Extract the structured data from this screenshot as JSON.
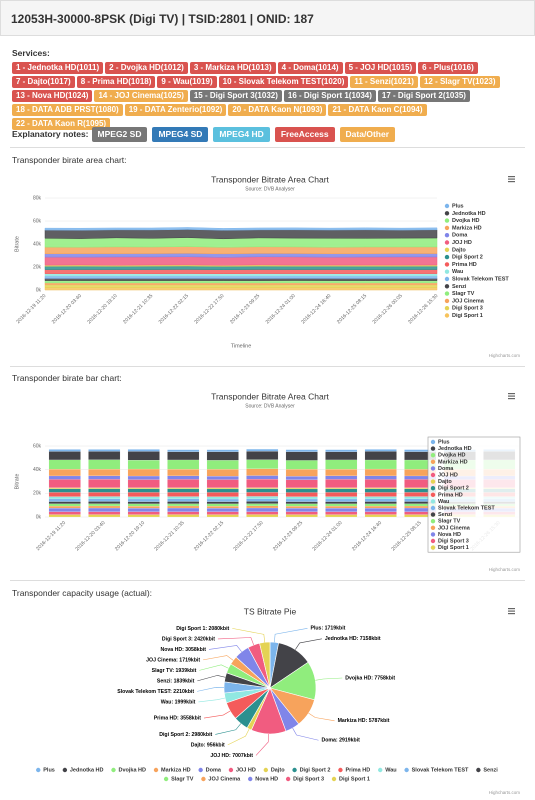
{
  "header": {
    "title": "12053H-30000-8PSK (Digi TV) | TSID:2801 | ONID: 187"
  },
  "services": {
    "label": "Services:",
    "items": [
      {
        "label": "1 - Jednotka HD(1011)",
        "color": "#d9534f"
      },
      {
        "label": "2 - Dvojka HD(1012)",
        "color": "#d9534f"
      },
      {
        "label": "3 - Markiza HD(1013)",
        "color": "#d9534f"
      },
      {
        "label": "4 - Doma(1014)",
        "color": "#d9534f"
      },
      {
        "label": "5 - JOJ HD(1015)",
        "color": "#d9534f"
      },
      {
        "label": "6 - Plus(1016)",
        "color": "#d9534f"
      },
      {
        "label": "7 - Dajto(1017)",
        "color": "#d9534f"
      },
      {
        "label": "8 - Prima HD(1018)",
        "color": "#d9534f"
      },
      {
        "label": "9 - Wau(1019)",
        "color": "#d9534f"
      },
      {
        "label": "10 - Slovak Telekom TEST(1020)",
        "color": "#d9534f"
      },
      {
        "label": "11 - Senzi(1021)",
        "color": "#f0ad4e"
      },
      {
        "label": "12 - Slagr TV(1023)",
        "color": "#f0ad4e"
      },
      {
        "label": "13 - Nova HD(1024)",
        "color": "#d9534f"
      },
      {
        "label": "14 - JOJ Cinema(1025)",
        "color": "#f0ad4e"
      },
      {
        "label": "15 - Digi Sport 3(1032)",
        "color": "#777777"
      },
      {
        "label": "16 - Digi Sport 1(1034)",
        "color": "#777777"
      },
      {
        "label": "17 - Digi Sport 2(1035)",
        "color": "#777777"
      },
      {
        "label": "18 - DATA ADB PRST(1080)",
        "color": "#f0ad4e"
      },
      {
        "label": "19 - DATA Zenterio(1092)",
        "color": "#f0ad4e"
      },
      {
        "label": "20 - DATA Kaon N(1093)",
        "color": "#f0ad4e"
      },
      {
        "label": "21 - DATA Kaon C(1094)",
        "color": "#f0ad4e"
      },
      {
        "label": "22 - DATA Kaon R(1095)",
        "color": "#f0ad4e"
      }
    ]
  },
  "notes": {
    "label": "Explanatory notes:",
    "items": [
      {
        "label": "MPEG2 SD",
        "color": "#777777"
      },
      {
        "label": "MPEG4 SD",
        "color": "#337ab7"
      },
      {
        "label": "MPEG4 HD",
        "color": "#5bc0de"
      },
      {
        "label": "FreeAccess",
        "color": "#d9534f"
      },
      {
        "label": "Data/Other",
        "color": "#f0ad4e"
      }
    ]
  },
  "sections": [
    "Transponder birate area chart:",
    "Transponder birate bar chart:",
    "Transponder capacity usage (actual):"
  ],
  "chart_data": [
    {
      "type": "area",
      "title": "Transponder Bitrate Area Chart",
      "subtitle": "Source: DVB Analyser",
      "y_label": "Bitrate",
      "x_label": "Timeline",
      "credits": "Highcharts.com",
      "grid": true,
      "stacked": true,
      "ylim": [
        0,
        80000
      ],
      "yticks": [
        {
          "value": 0,
          "label": "0k"
        },
        {
          "value": 20000,
          "label": "20k"
        },
        {
          "value": 40000,
          "label": "40k"
        },
        {
          "value": 60000,
          "label": "60k"
        },
        {
          "value": 80000,
          "label": "80k"
        }
      ],
      "categories": [
        "2016-12-19 11:20",
        "2016-12-20 03:40",
        "2016-12-20 19:10",
        "2016-12-21 10:35",
        "2016-12-22 02:15",
        "2016-12-22 17:50",
        "2016-12-23 09:25",
        "2016-12-24 01:00",
        "2016-12-24 16:40",
        "2016-12-25 08:15",
        "2016-12-26 00:05",
        "2016-12-26 15:30"
      ],
      "series": [
        {
          "name": "Plus",
          "color": "#7cb5ec",
          "values": [
            1700,
            1750,
            1680,
            1720,
            1790,
            1650,
            1710,
            1740,
            1690,
            1760,
            1700,
            1720
          ]
        },
        {
          "name": "Jednotka HD",
          "color": "#434348",
          "values": [
            7100,
            7300,
            6900,
            7250,
            7050,
            7400,
            6950,
            7200,
            7100,
            7350,
            7000,
            7150
          ]
        },
        {
          "name": "Dvojka HD",
          "color": "#90ed7d",
          "values": [
            7700,
            7500,
            7900,
            7600,
            7800,
            7450,
            7750,
            7650,
            7900,
            7550,
            7700,
            7750
          ]
        },
        {
          "name": "Markiza HD",
          "color": "#f7a35c",
          "values": [
            5800,
            5600,
            5900,
            5700,
            5950,
            5650,
            5800,
            5750,
            5600,
            5850,
            5700,
            5790
          ]
        },
        {
          "name": "Doma",
          "color": "#8085e9",
          "values": [
            2900,
            3000,
            2850,
            2950,
            2900,
            3050,
            2880,
            2920,
            2990,
            2870,
            2950,
            2920
          ]
        },
        {
          "name": "JOJ HD",
          "color": "#f15c80",
          "values": [
            7000,
            6800,
            7200,
            6950,
            7100,
            6900,
            7050,
            7150,
            6850,
            7000,
            7100,
            7010
          ]
        },
        {
          "name": "Dajto",
          "color": "#e4d354",
          "values": [
            950,
            1000,
            920,
            980,
            960,
            940,
            1010,
            930,
            970,
            990,
            950,
            960
          ]
        },
        {
          "name": "Digi Sport 2",
          "color": "#2b908f",
          "values": [
            2950,
            3000,
            2900,
            3050,
            2980,
            2920,
            3010,
            2970,
            2940,
            3020,
            2960,
            2980
          ]
        },
        {
          "name": "Prima HD",
          "color": "#f45b5b",
          "values": [
            3500,
            3600,
            3450,
            3550,
            3620,
            3480,
            3560,
            3510,
            3590,
            3470,
            3540,
            3560
          ]
        },
        {
          "name": "Wau",
          "color": "#91e8e1",
          "values": [
            2000,
            1950,
            2050,
            1980,
            2010,
            1970,
            2030,
            1990,
            1960,
            2020,
            2000,
            2000
          ]
        },
        {
          "name": "Slovak Telekom TEST",
          "color": "#7cb5ec",
          "values": [
            2200,
            2250,
            2180,
            2210,
            2230,
            2190,
            2240,
            2200,
            2220,
            2210,
            2190,
            2210
          ]
        },
        {
          "name": "Senzi",
          "color": "#434348",
          "values": [
            1850,
            1800,
            1870,
            1830,
            1840,
            1820,
            1860,
            1810,
            1850,
            1840,
            1830,
            1840
          ]
        },
        {
          "name": "Slagr TV",
          "color": "#90ed7d",
          "values": [
            1950,
            1920,
            1960,
            1930,
            1940,
            1950,
            1920,
            1960,
            1930,
            1940,
            1950,
            1940
          ]
        },
        {
          "name": "JOJ Cinema",
          "color": "#f7a35c",
          "values": [
            1700,
            1750,
            1690,
            1720,
            1730,
            1700,
            1740,
            1710,
            1720,
            1690,
            1730,
            1720
          ]
        },
        {
          "name": "Digi Sport 3",
          "color": "#e4d354",
          "values": [
            2400,
            2450,
            2380,
            2420,
            2430,
            2410,
            2390,
            2440,
            2420,
            2400,
            2430,
            2420
          ]
        },
        {
          "name": "Digi Sport 1",
          "color": "#f7c35c",
          "values": [
            2100,
            2050,
            2120,
            2080,
            2070,
            2090,
            2060,
            2110,
            2080,
            2090,
            2070,
            2080
          ]
        }
      ]
    },
    {
      "type": "bar",
      "title": "Transponder Bitrate Area Chart",
      "subtitle": "Source: DVB Analyser",
      "y_label": "Bitrate",
      "credits": "Highcharts.com",
      "grid": true,
      "stacked": true,
      "ylim": [
        0,
        60000
      ],
      "yticks": [
        {
          "value": 0,
          "label": "0k"
        },
        {
          "value": 20000,
          "label": "20k"
        },
        {
          "value": 40000,
          "label": "40k"
        },
        {
          "value": 60000,
          "label": "60k"
        }
      ],
      "categories": [
        "2016-12-19 11:20",
        "2016-12-20 03:40",
        "2016-12-20 19:10",
        "2016-12-21 10:35",
        "2016-12-22 02:15",
        "2016-12-22 17:50",
        "2016-12-23 09:25",
        "2016-12-24 01:00",
        "2016-12-24 16:40",
        "2016-12-25 08:15",
        "2016-12-26 00:05",
        "2016-12-26 15:30"
      ],
      "series": [
        {
          "name": "Plus",
          "color": "#7cb5ec",
          "values": [
            1720,
            1690,
            1750,
            1700,
            1680,
            1760,
            1710,
            1730,
            1700,
            1740,
            1690,
            1720
          ]
        },
        {
          "name": "Jednotka HD",
          "color": "#434348",
          "values": [
            7150,
            7000,
            7300,
            6950,
            7200,
            7100,
            7350,
            6900,
            7250,
            7050,
            7150,
            7160
          ]
        },
        {
          "name": "Dvojka HD",
          "color": "#90ed7d",
          "values": [
            7750,
            7900,
            7550,
            7800,
            7600,
            7700,
            7450,
            7850,
            7650,
            7800,
            7700,
            7760
          ]
        },
        {
          "name": "Markiza HD",
          "color": "#f7a35c",
          "values": [
            5790,
            5700,
            5900,
            5650,
            5850,
            5750,
            5950,
            5600,
            5800,
            5700,
            5850,
            5790
          ]
        },
        {
          "name": "Doma",
          "color": "#8085e9",
          "values": [
            2920,
            2880,
            2990,
            2950,
            2870,
            3000,
            2910,
            2940,
            2960,
            2890,
            2930,
            2920
          ]
        },
        {
          "name": "JOJ HD",
          "color": "#f15c80",
          "values": [
            7010,
            7150,
            6900,
            7050,
            6950,
            7200,
            6850,
            7100,
            7000,
            7050,
            6950,
            7010
          ]
        },
        {
          "name": "Dajto",
          "color": "#e4d354",
          "values": [
            960,
            940,
            990,
            950,
            1000,
            930,
            970,
            960,
            980,
            940,
            950,
            960
          ]
        },
        {
          "name": "Digi Sport 2",
          "color": "#2b908f",
          "values": [
            2980,
            3010,
            2950,
            2990,
            2930,
            3040,
            2970,
            2960,
            3000,
            2950,
            2990,
            2980
          ]
        },
        {
          "name": "Prima HD",
          "color": "#f45b5b",
          "values": [
            3560,
            3490,
            3610,
            3520,
            3580,
            3470,
            3550,
            3600,
            3500,
            3540,
            3570,
            3560
          ]
        },
        {
          "name": "Wau",
          "color": "#91e8e1",
          "values": [
            2000,
            2020,
            1970,
            2010,
            1990,
            2040,
            1960,
            2000,
            2030,
            1980,
            2010,
            2000
          ]
        },
        {
          "name": "Slovak Telekom TEST",
          "color": "#7cb5ec",
          "values": [
            2210,
            2190,
            2240,
            2200,
            2220,
            2180,
            2230,
            2210,
            2200,
            2250,
            2190,
            2210
          ]
        },
        {
          "name": "Senzi",
          "color": "#434348",
          "values": [
            1840,
            1860,
            1820,
            1850,
            1830,
            1870,
            1810,
            1840,
            1860,
            1830,
            1850,
            1840
          ]
        },
        {
          "name": "Slagr TV",
          "color": "#90ed7d",
          "values": [
            1940,
            1930,
            1960,
            1920,
            1950,
            1940,
            1970,
            1930,
            1940,
            1950,
            1920,
            1940
          ]
        },
        {
          "name": "JOJ Cinema",
          "color": "#f7a35c",
          "values": [
            1720,
            1740,
            1700,
            1730,
            1690,
            1750,
            1710,
            1720,
            1740,
            1700,
            1730,
            1720
          ]
        },
        {
          "name": "Nova HD",
          "color": "#8085e9",
          "values": [
            3050,
            3100,
            3000,
            3080,
            3020,
            3110,
            2990,
            3060,
            3040,
            3090,
            3010,
            3060
          ]
        },
        {
          "name": "Digi Sport 3",
          "color": "#f15c80",
          "values": [
            2420,
            2400,
            2450,
            2410,
            2430,
            2390,
            2440,
            2420,
            2400,
            2430,
            2410,
            2420
          ]
        },
        {
          "name": "Digi Sport 1",
          "color": "#e4d354",
          "values": [
            2080,
            2090,
            2060,
            2100,
            2070,
            2110,
            2080,
            2060,
            2090,
            2080,
            2100,
            2080
          ]
        }
      ]
    },
    {
      "type": "pie",
      "title": "TS Bitrate Pie",
      "credits": "Highcharts.com",
      "categories": [
        "Plus",
        "Jednotka HD",
        "Dvojka HD",
        "Markiza HD",
        "Doma",
        "JOJ HD",
        "Dajto",
        "Digi Sport 2",
        "Prima HD",
        "Wau",
        "Slovak Telekom TEST",
        "Senzi",
        "Slagr TV",
        "JOJ Cinema",
        "Nova HD",
        "Digi Sport 3",
        "Digi Sport 1"
      ],
      "values": [
        1719,
        7158,
        7758,
        5787,
        2919,
        7007,
        956,
        2980,
        3558,
        1999,
        2210,
        1839,
        1939,
        1719,
        3058,
        2420,
        2080
      ],
      "value_labels": [
        "Plus: 1719kbit",
        "Jednotka HD: 7158kbit",
        "Dvojka HD: 7758kbit",
        "Markiza HD: 5787kbit",
        "Doma: 2919kbit",
        "JOJ HD: 7007kbit",
        "Dajto: 956kbit",
        "Digi Sport 2: 2980kbit",
        "Prima HD: 3558kbit",
        "Wau: 1999kbit",
        "Slovak Telekom TEST: 2210kbit",
        "Senzi: 1839kbit",
        "Slagr TV: 1939kbit",
        "JOJ Cinema: 1719kbit",
        "Nova HD: 3058kbit",
        "Digi Sport 3: 2420kbit",
        "Digi Sport 1: 2080kbit"
      ],
      "colors": [
        "#7cb5ec",
        "#434348",
        "#90ed7d",
        "#f7a35c",
        "#8085e9",
        "#f15c80",
        "#e4d354",
        "#2b908f",
        "#f45b5b",
        "#91e8e1",
        "#7cb5ec",
        "#434348",
        "#90ed7d",
        "#f7a35c",
        "#8085e9",
        "#f15c80",
        "#e4d354"
      ]
    }
  ]
}
